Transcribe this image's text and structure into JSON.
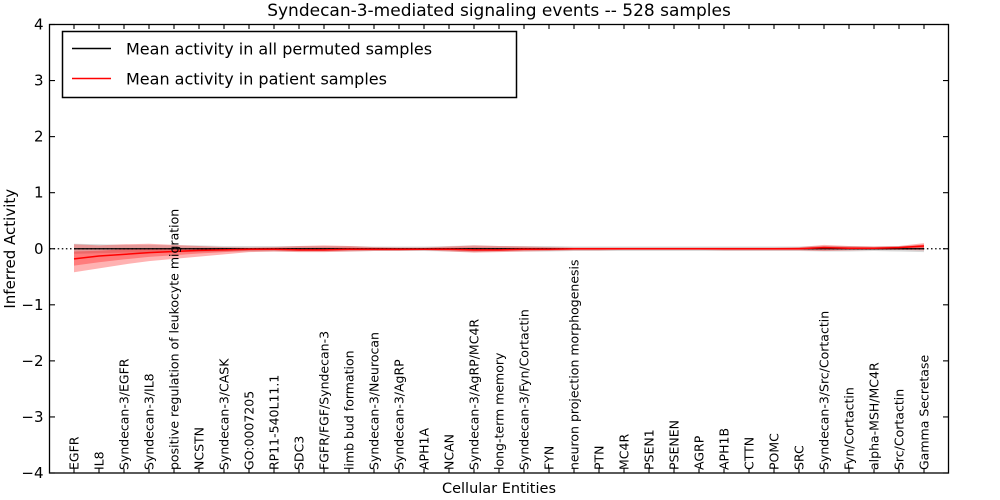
{
  "chart_data": {
    "type": "line",
    "title": "Syndecan-3-mediated signaling events -- 528 samples",
    "xlabel": "Cellular Entities",
    "ylabel": "Inferred Activity",
    "ylim": [
      -4,
      4
    ],
    "yticks": [
      4,
      3,
      2,
      1,
      0,
      -1,
      -2,
      -3,
      -4
    ],
    "ytick_labels": [
      "4",
      "3",
      "2",
      "1",
      "0",
      "−1",
      "−2",
      "−3",
      "−4"
    ],
    "grid": false,
    "legend_position": "upper-left",
    "zero_reference_line": {
      "y": 0,
      "style": "dotted",
      "color": "#000000"
    },
    "categories": [
      "EGFR",
      "IL8",
      "Syndecan-3/EGFR",
      "Syndecan-3/IL8",
      "positive regulation of leukocyte migration",
      "NCSTN",
      "Syndecan-3/CASK",
      "GO:0007205",
      "RP11-540L11.1",
      "SDC3",
      "FGFR/FGF/Syndecan-3",
      "limb bud formation",
      "Syndecan-3/Neurocan",
      "Syndecan-3/AgRP",
      "APH1A",
      "NCAN",
      "Syndecan-3/AgRP/MC4R",
      "long-term memory",
      "Syndecan-3/Fyn/Cortactin",
      "FYN",
      "neuron projection morphogenesis",
      "PTN",
      "MC4R",
      "PSEN1",
      "PSENEN",
      "AGRP",
      "APH1B",
      "CTTN",
      "POMC",
      "SRC",
      "Syndecan-3/Src/Cortactin",
      "Fyn/Cortactin",
      "alpha-MSH/MC4R",
      "Src/Cortactin",
      "Gamma Secretase"
    ],
    "series": [
      {
        "name": "Mean activity in all permuted samples",
        "color": "#000000",
        "band_color": "#d9d9d9",
        "values": [
          0,
          0,
          0,
          0,
          0,
          0,
          0,
          0,
          0,
          0,
          0,
          0,
          0,
          0,
          0,
          0,
          0,
          0,
          0,
          0,
          0,
          0,
          0,
          0,
          0,
          0,
          0,
          0,
          0,
          0,
          0,
          0,
          0,
          0,
          0
        ],
        "band_halfwidth": [
          0.09,
          0.08,
          0.07,
          0.07,
          0.06,
          0.06,
          0.05,
          0.05,
          0.05,
          0.05,
          0.05,
          0.05,
          0.04,
          0.04,
          0.04,
          0.05,
          0.06,
          0.05,
          0.05,
          0.05,
          0.04,
          0.04,
          0.04,
          0.04,
          0.04,
          0.04,
          0.04,
          0.04,
          0.04,
          0.04,
          0.05,
          0.05,
          0.04,
          0.05,
          0.06
        ]
      },
      {
        "name": "Mean activity in patient samples",
        "color": "#ff0000",
        "band_color": "#ff0000",
        "values": [
          -0.18,
          -0.13,
          -0.1,
          -0.07,
          -0.05,
          -0.03,
          -0.02,
          -0.01,
          -0.01,
          -0.02,
          -0.02,
          -0.01,
          -0.01,
          -0.01,
          -0.01,
          -0.01,
          -0.02,
          -0.02,
          -0.01,
          -0.01,
          0.0,
          0.0,
          0.0,
          0.0,
          0.0,
          0.0,
          0.0,
          0.0,
          0.0,
          0.0,
          0.02,
          0.01,
          0.01,
          0.02,
          0.05
        ],
        "band_upper": [
          0.08,
          0.06,
          0.08,
          0.09,
          0.07,
          0.05,
          0.03,
          0.02,
          0.03,
          0.05,
          0.06,
          0.05,
          0.03,
          0.02,
          0.02,
          0.04,
          0.06,
          0.05,
          0.04,
          0.03,
          0.02,
          0.02,
          0.02,
          0.02,
          0.02,
          0.02,
          0.02,
          0.02,
          0.02,
          0.03,
          0.07,
          0.05,
          0.04,
          0.05,
          0.1
        ],
        "band_lower": [
          -0.42,
          -0.35,
          -0.28,
          -0.22,
          -0.18,
          -0.14,
          -0.1,
          -0.06,
          -0.05,
          -0.06,
          -0.06,
          -0.05,
          -0.04,
          -0.04,
          -0.03,
          -0.05,
          -0.07,
          -0.06,
          -0.05,
          -0.04,
          -0.03,
          -0.03,
          -0.02,
          -0.02,
          -0.02,
          -0.02,
          -0.03,
          -0.03,
          -0.03,
          -0.03,
          -0.04,
          -0.03,
          -0.02,
          -0.02,
          -0.03
        ]
      }
    ]
  }
}
